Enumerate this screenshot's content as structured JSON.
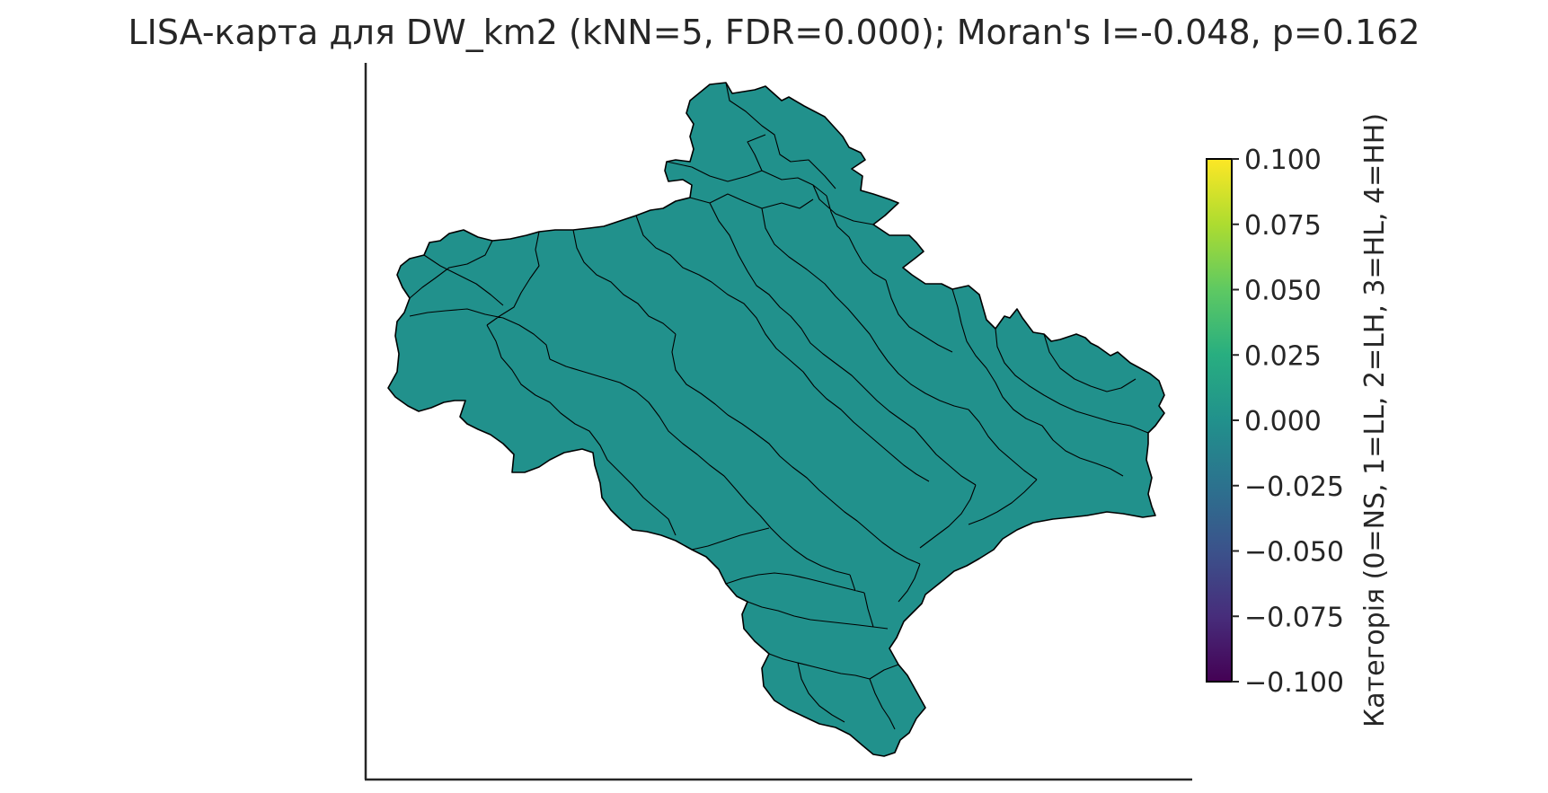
{
  "title": "LISA-карта для DW_km2 (kNN=5, FDR=0.000); Moran's I=-0.048, p=0.162",
  "map": {
    "fill_color": "#21918c",
    "edge_color": "#000000",
    "category_shown": 0
  },
  "colorbar": {
    "label": "Категорія (0=NS, 1=LL, 2=LH, 3=HL, 4=HH)",
    "colormap": "viridis",
    "range": [
      -0.1,
      0.1
    ],
    "ticks": [
      "0.100",
      "0.075",
      "0.050",
      "0.025",
      "0.000",
      "−0.025",
      "−0.050",
      "−0.075",
      "−0.100"
    ],
    "tick_values": [
      0.1,
      0.075,
      0.05,
      0.025,
      0.0,
      -0.025,
      -0.05,
      -0.075,
      -0.1
    ]
  }
}
